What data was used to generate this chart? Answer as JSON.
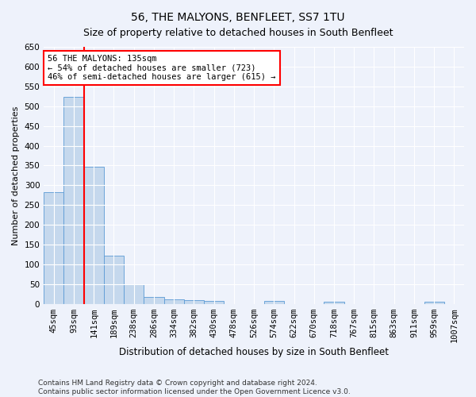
{
  "title": "56, THE MALYONS, BENFLEET, SS7 1TU",
  "subtitle": "Size of property relative to detached houses in South Benfleet",
  "xlabel": "Distribution of detached houses by size in South Benfleet",
  "ylabel": "Number of detached properties",
  "footer_line1": "Contains HM Land Registry data © Crown copyright and database right 2024.",
  "footer_line2": "Contains public sector information licensed under the Open Government Licence v3.0.",
  "bar_labels": [
    "45sqm",
    "93sqm",
    "141sqm",
    "189sqm",
    "238sqm",
    "286sqm",
    "334sqm",
    "382sqm",
    "430sqm",
    "478sqm",
    "526sqm",
    "574sqm",
    "622sqm",
    "670sqm",
    "718sqm",
    "767sqm",
    "815sqm",
    "863sqm",
    "911sqm",
    "959sqm",
    "1007sqm"
  ],
  "bar_values": [
    283,
    523,
    347,
    122,
    49,
    17,
    12,
    10,
    7,
    0,
    0,
    8,
    0,
    0,
    6,
    0,
    0,
    0,
    0,
    6,
    0
  ],
  "bar_color": "#c5d8ed",
  "bar_edge_color": "#5b9bd5",
  "ylim": [
    0,
    650
  ],
  "yticks": [
    0,
    50,
    100,
    150,
    200,
    250,
    300,
    350,
    400,
    450,
    500,
    550,
    600,
    650
  ],
  "vline_x": 1.5,
  "annotation_text_line1": "56 THE MALYONS: 135sqm",
  "annotation_text_line2": "← 54% of detached houses are smaller (723)",
  "annotation_text_line3": "46% of semi-detached houses are larger (615) →",
  "annotation_box_color": "white",
  "annotation_border_color": "red",
  "vline_color": "red",
  "background_color": "#eef2fb",
  "grid_color": "white",
  "title_fontsize": 10,
  "subtitle_fontsize": 9,
  "axis_label_fontsize": 8.5,
  "tick_fontsize": 7.5,
  "annotation_fontsize": 7.5,
  "ylabel_fontsize": 8
}
